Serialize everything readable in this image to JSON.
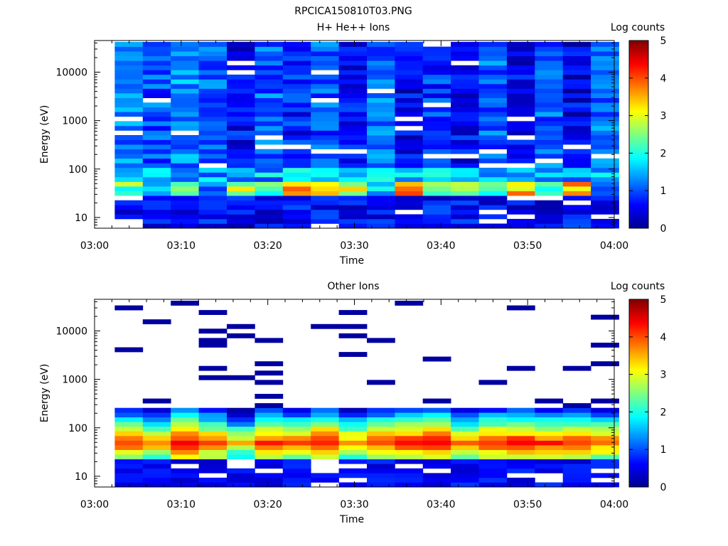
{
  "figure": {
    "filename": "RPCICA150810T03.PNG"
  },
  "colors": {
    "jet_stops": [
      "#00008f",
      "#0000ff",
      "#0080ff",
      "#00ffff",
      "#80ff80",
      "#ffff00",
      "#ff8000",
      "#ff0000",
      "#800000"
    ]
  },
  "chart_data": [
    {
      "type": "heatmap",
      "title": "H+ He++ Ions",
      "xlabel": "Time",
      "ylabel": "Energy (eV)",
      "yscale": "log",
      "ylim": [
        6,
        45000
      ],
      "xlim": [
        "03:00",
        "04:00"
      ],
      "xticks": [
        "03:00",
        "03:10",
        "03:20",
        "03:30",
        "03:40",
        "03:50",
        "04:00"
      ],
      "yticks": [
        {
          "value": 10,
          "label": "10"
        },
        {
          "value": 100,
          "label": "100"
        },
        {
          "value": 1000,
          "label": "1000"
        },
        {
          "value": 10000,
          "label": "10000"
        }
      ],
      "time_start": "03:02:20",
      "time_step_seconds": 194,
      "time_bins": 18,
      "energy_bins": 40,
      "energy_min": 6,
      "energy_max": 42000,
      "colorbar": {
        "label": "Log counts",
        "min": 0,
        "max": 5,
        "ticks": [
          "0",
          "1",
          "2",
          "3",
          "4",
          "5"
        ]
      },
      "band_energy_eV": [
        30,
        60
      ],
      "band_counts_log": [
        3.0,
        2.5,
        3.0,
        2.0,
        3.3,
        2.8,
        4.0,
        3.5,
        3.5,
        2.0,
        4.2,
        3.0,
        3.2,
        2.5,
        4.0,
        2.5,
        4.0,
        2.0
      ],
      "low_energy_counts_log": 0.6,
      "high_energy_counts_log": [
        1.2,
        1.0,
        1.3,
        1.1,
        0.6,
        1.1,
        0.7,
        1.0,
        0.6,
        1.2,
        0.5,
        0.9,
        0.6,
        1.1,
        0.5,
        1.1,
        0.5,
        1.2
      ]
    },
    {
      "type": "heatmap",
      "title": "Other Ions",
      "xlabel": "Time",
      "ylabel": "Energy (eV)",
      "yscale": "log",
      "ylim": [
        6,
        45000
      ],
      "xlim": [
        "03:00",
        "04:00"
      ],
      "xticks": [
        "03:00",
        "03:10",
        "03:20",
        "03:30",
        "03:40",
        "03:50",
        "04:00"
      ],
      "yticks": [
        {
          "value": 10,
          "label": "10"
        },
        {
          "value": 100,
          "label": "100"
        },
        {
          "value": 1000,
          "label": "1000"
        },
        {
          "value": 10000,
          "label": "10000"
        }
      ],
      "time_start": "03:02:20",
      "time_step_seconds": 194,
      "time_bins": 18,
      "energy_bins": 40,
      "energy_min": 6,
      "energy_max": 42000,
      "colorbar": {
        "label": "Log counts",
        "min": 0,
        "max": 5,
        "ticks": [
          "0",
          "1",
          "2",
          "3",
          "4",
          "5"
        ]
      },
      "peak_energy_eV": 50,
      "peak_counts_log": [
        4.4,
        4.0,
        4.8,
        4.3,
        3.6,
        4.5,
        4.2,
        4.7,
        4.0,
        4.4,
        4.6,
        4.8,
        4.0,
        4.5,
        4.6,
        4.4,
        4.5,
        4.2
      ],
      "sparse_high_energy_counts_log": 0.1
    }
  ]
}
